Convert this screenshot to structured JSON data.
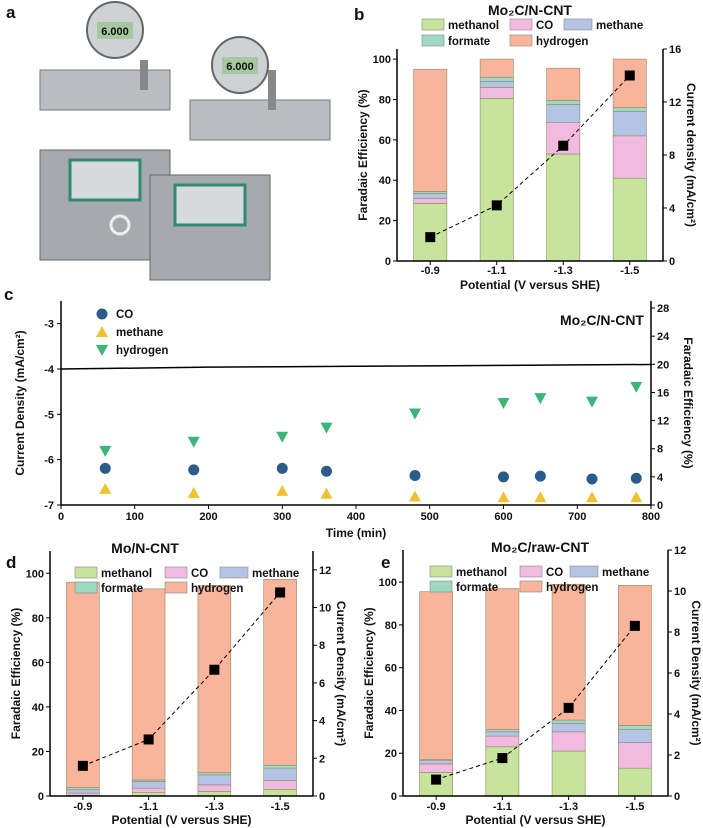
{
  "panels": {
    "a": "a",
    "b": "b",
    "c": "c",
    "d": "d",
    "e": "e"
  },
  "photo": {
    "gauge_readout": "6.000"
  },
  "colors": {
    "methanol": "#c8e49c",
    "CO": "#f2bade",
    "methane": "#b5c4e4",
    "formate": "#a0d9c2",
    "hydrogen": "#f9b59b",
    "c_CO": "#2b5b8b",
    "c_methane": "#f0c232",
    "c_hydrogen": "#3db57a"
  },
  "chart_data": [
    {
      "type": "bar",
      "stacked": true,
      "title": "Mo₂C/N-CNT",
      "xlabel": "Potential (V versus SHE)",
      "ylabel": "Faradaic Efficiency (%)",
      "ylabel_right": "Current density (mA/cm²)",
      "categories": [
        "-0.9",
        "-1.1",
        "-1.3",
        "-1.5"
      ],
      "ylim": [
        0,
        105
      ],
      "yticks": [
        0,
        20,
        40,
        60,
        80,
        100
      ],
      "ylim_right": [
        0,
        16
      ],
      "yticks_right": [
        0,
        4,
        8,
        12,
        16
      ],
      "legend": [
        "methanol",
        "CO",
        "methane",
        "formate",
        "hydrogen"
      ],
      "series": [
        {
          "name": "methanol",
          "values": [
            28.5,
            80.5,
            53,
            41
          ]
        },
        {
          "name": "CO",
          "values": [
            2.5,
            5.5,
            15.5,
            21
          ]
        },
        {
          "name": "methane",
          "values": [
            2.5,
            3,
            9,
            12
          ]
        },
        {
          "name": "formate",
          "values": [
            1,
            2,
            2,
            2
          ]
        },
        {
          "name": "hydrogen",
          "values": [
            60.5,
            9,
            16,
            24
          ]
        }
      ],
      "current_density": [
        1.8,
        4.2,
        8.7,
        14.0
      ]
    },
    {
      "type": "scatter",
      "title": "Mo₂C/N-CNT",
      "xlabel": "Time (min)",
      "ylabel": "Current Density (mA/cm²)",
      "ylabel_right": "Faradaic Efficiency (%)",
      "xlim": [
        0,
        800
      ],
      "xticks": [
        0,
        100,
        200,
        300,
        400,
        500,
        600,
        700,
        800
      ],
      "ylim": [
        -7,
        -2.5
      ],
      "yticks": [
        -7,
        -6,
        -5,
        -4,
        -3
      ],
      "ylim_right": [
        0,
        29
      ],
      "yticks_right": [
        0,
        4,
        8,
        12,
        16,
        20,
        24,
        28
      ],
      "current_density_line": {
        "x": [
          0,
          100,
          200,
          300,
          400,
          500,
          600,
          700,
          800
        ],
        "y": [
          -4.0,
          -3.98,
          -3.96,
          -3.95,
          -3.94,
          -3.93,
          -3.92,
          -3.91,
          -3.9
        ]
      },
      "x": [
        60,
        180,
        300,
        360,
        480,
        600,
        650,
        720,
        780
      ],
      "series": [
        {
          "name": "CO",
          "values": [
            5.2,
            5.0,
            5.2,
            4.8,
            4.2,
            4.0,
            4.1,
            3.7,
            3.8
          ]
        },
        {
          "name": "methane",
          "values": [
            2.3,
            1.7,
            2.0,
            1.6,
            1.2,
            1.1,
            1.1,
            1.1,
            1.1
          ]
        },
        {
          "name": "hydrogen",
          "values": [
            7.7,
            9.0,
            9.7,
            11.0,
            13.0,
            14.5,
            15.2,
            14.7,
            16.8
          ]
        }
      ]
    },
    {
      "type": "bar",
      "stacked": true,
      "title": "Mo/N-CNT",
      "xlabel": "Potential (V versus SHE)",
      "ylabel": "Faradaic Efficiency (%)",
      "ylabel_right": "Current Density (mA/cm²)",
      "categories": [
        "-0.9",
        "-1.1",
        "-1.3",
        "-1.5"
      ],
      "ylim": [
        0,
        110
      ],
      "yticks": [
        0,
        20,
        40,
        60,
        80,
        100
      ],
      "ylim_right": [
        0,
        13
      ],
      "yticks_right": [
        0,
        2,
        4,
        6,
        8,
        10,
        12
      ],
      "legend": [
        "methanol",
        "CO",
        "methane",
        "formate",
        "hydrogen"
      ],
      "series": [
        {
          "name": "methanol",
          "values": [
            0.3,
            1.5,
            2,
            3
          ]
        },
        {
          "name": "CO",
          "values": [
            1,
            2,
            3,
            4
          ]
        },
        {
          "name": "methane",
          "values": [
            1.5,
            3,
            4.5,
            5.5
          ]
        },
        {
          "name": "formate",
          "values": [
            1,
            0.7,
            1,
            1.3
          ]
        },
        {
          "name": "hydrogen",
          "values": [
            92.2,
            85.8,
            84,
            83.5
          ]
        }
      ],
      "current_density": [
        1.6,
        3.0,
        6.7,
        10.8
      ]
    },
    {
      "type": "bar",
      "stacked": true,
      "title": "Mo₂C/raw-CNT",
      "xlabel": "Potential (V versus SHE)",
      "ylabel": "Faradaic Efficiency (%)",
      "ylabel_right": "Current Density (mA/cm²)",
      "categories": [
        "-0.9",
        "-1.1",
        "-1.3",
        "-1.5"
      ],
      "ylim": [
        0,
        115
      ],
      "yticks": [
        0,
        20,
        40,
        60,
        80,
        100
      ],
      "ylim_right": [
        0,
        12
      ],
      "yticks_right": [
        0,
        2,
        4,
        6,
        8,
        10,
        12
      ],
      "legend": [
        "methanol",
        "CO",
        "methane",
        "formate",
        "hydrogen"
      ],
      "series": [
        {
          "name": "methanol",
          "values": [
            11,
            23,
            21,
            13
          ]
        },
        {
          "name": "CO",
          "values": [
            4,
            5,
            9,
            12
          ]
        },
        {
          "name": "methane",
          "values": [
            1.5,
            2,
            4,
            6
          ]
        },
        {
          "name": "formate",
          "values": [
            0.5,
            1,
            1.5,
            2
          ]
        },
        {
          "name": "hydrogen",
          "values": [
            78.5,
            66,
            63.5,
            65.5
          ]
        }
      ],
      "current_density": [
        0.8,
        1.85,
        4.3,
        8.3
      ]
    }
  ]
}
